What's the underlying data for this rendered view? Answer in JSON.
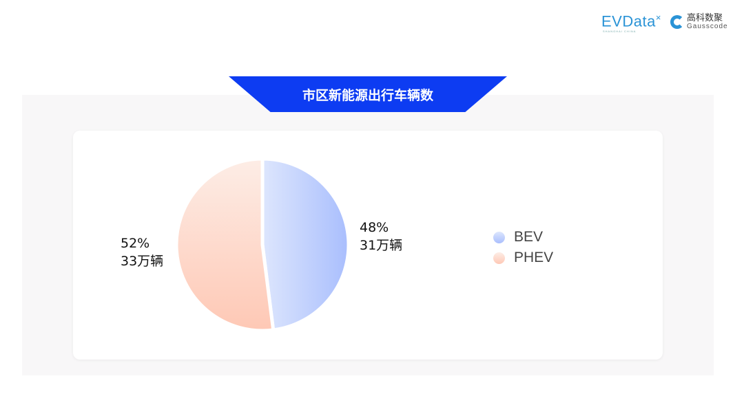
{
  "logos": {
    "evdata": "EVData",
    "evdata_sub": "SHANGHAI CHINA",
    "gauss_cn": "高科数聚",
    "gauss_en": "Gausscode"
  },
  "title": "市区新能源出行车辆数",
  "chart_data": {
    "type": "pie",
    "title": "市区新能源出行车辆数",
    "slices": [
      {
        "name": "BEV",
        "percent": 48,
        "value_label": "31万辆",
        "value": 31,
        "unit": "万辆",
        "colors": [
          "#dde6fd",
          "#a9befd"
        ]
      },
      {
        "name": "PHEV",
        "percent": 52,
        "value_label": "33万辆",
        "value": 33,
        "unit": "万辆",
        "colors": [
          "#fdede6",
          "#fec8b5"
        ]
      }
    ],
    "start": "12 o'clock, clockwise",
    "legend": "right"
  }
}
